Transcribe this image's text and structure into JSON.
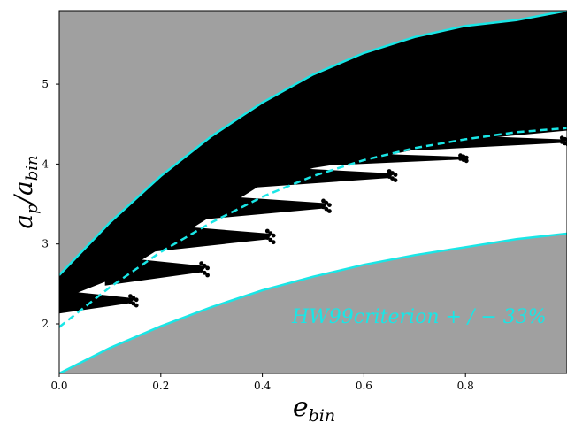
{
  "chart_data": {
    "type": "scatter",
    "title": "",
    "xlabel": "e_bin",
    "ylabel": "a_p/a_bin",
    "xlim": [
      0.0,
      1.0
    ],
    "ylim": [
      1.38,
      5.92
    ],
    "xticks": [
      "0.0",
      "0.2",
      "0.4",
      "0.6",
      "0.8"
    ],
    "yticks": [
      "2",
      "3",
      "4",
      "5"
    ],
    "grid": false,
    "background_color": "#a0a0a0",
    "stable_region_color": "#ffffff",
    "unstable_points_color": "#000000",
    "curve_color": "#19e6e6",
    "annotation": "HW99criterion + / − 33%",
    "series": [
      {
        "style": "solid",
        "x": [
          0.0,
          0.1,
          0.2,
          0.3,
          0.4,
          0.5,
          0.6,
          0.7,
          0.8,
          0.9,
          1.0
        ],
        "y": [
          2.61,
          3.27,
          3.85,
          4.35,
          4.77,
          5.12,
          5.39,
          5.59,
          5.73,
          5.8,
          5.92
        ]
      },
      {
        "style": "dashed",
        "x": [
          0.0,
          0.1,
          0.2,
          0.3,
          0.4,
          0.5,
          0.6,
          0.7,
          0.8,
          0.9,
          1.0
        ],
        "y": [
          1.96,
          2.46,
          2.9,
          3.27,
          3.59,
          3.85,
          4.05,
          4.2,
          4.31,
          4.4,
          4.45
        ]
      },
      {
        "style": "solid",
        "x": [
          0.0,
          0.1,
          0.2,
          0.3,
          0.4,
          0.5,
          0.6,
          0.7,
          0.8,
          0.9,
          1.0
        ],
        "y": [
          1.38,
          1.7,
          1.97,
          2.21,
          2.42,
          2.59,
          2.74,
          2.86,
          2.96,
          3.06,
          3.13
        ]
      }
    ],
    "unstable_fingers": [
      {
        "x": [
          0.0,
          0.15
        ],
        "y_bottom": 2.13,
        "y_top": 2.42
      },
      {
        "x": [
          0.09,
          0.29
        ],
        "y_bottom": 2.48,
        "y_top": 2.85
      },
      {
        "x": [
          0.18,
          0.42
        ],
        "y_bottom": 2.9,
        "y_top": 3.25
      },
      {
        "x": [
          0.27,
          0.53
        ],
        "y_bottom": 3.3,
        "y_top": 3.62
      },
      {
        "x": [
          0.37,
          0.66
        ],
        "y_bottom": 3.7,
        "y_top": 3.98
      },
      {
        "x": [
          0.52,
          0.8
        ],
        "y_bottom": 3.98,
        "y_top": 4.15
      },
      {
        "x": [
          0.7,
          1.0
        ],
        "y_bottom": 4.17,
        "y_top": 4.38
      }
    ]
  }
}
